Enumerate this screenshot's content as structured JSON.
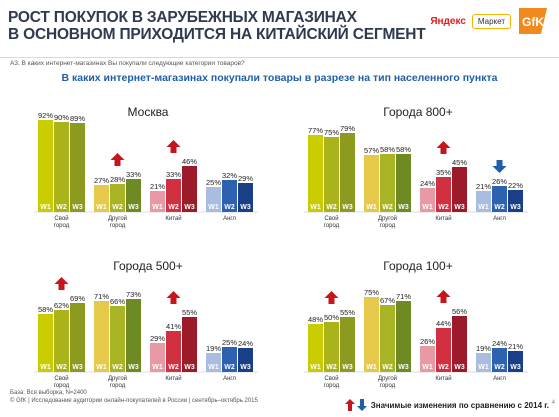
{
  "header": {
    "title_line1": "РОСТ ПОКУПОК В ЗАРУБЕЖНЫХ МАГАЗИНАХ",
    "title_line2": "В ОСНОВНОМ ПРИХОДИТСЯ НА КИТАЙСКИЙ СЕГМЕНТ",
    "question": "А3. В каких интернет-магазинах Вы покупали следующие категории товаров?",
    "subtitle": "В каких интернет-магазинах покупали товары в разрезе на тип населенного пункта",
    "logo_yandex": "Яндекс",
    "logo_market": "Маркет",
    "logo_gfk": "GfK"
  },
  "footer": {
    "base": "База: Вся выборка, N=2400",
    "source": "© GfK | Исследование аудитории онлайн-покупателей в России | сентябрь–октябрь 2015",
    "legend_text": "Значимые изменения по сравнению с 2014 г.",
    "page": "4"
  },
  "colors": {
    "svoy": [
      "#c9cc00",
      "#aab41a",
      "#8c9a1f"
    ],
    "drugoy": [
      "#e6c84a",
      "#a8b423",
      "#6e8a22"
    ],
    "kitay": [
      "#e79aa3",
      "#d0303f",
      "#9b1b2a"
    ],
    "angl": [
      "#a9bde0",
      "#2c62b0",
      "#1a3f86"
    ],
    "arrow_up": "#c4161c",
    "arrow_down": "#1f5fa8"
  },
  "chart_data": [
    {
      "type": "bar",
      "title": "Москва",
      "categories": [
        "Свой город",
        "Другой город",
        "Китай",
        "Англ"
      ],
      "series_labels": [
        "W1",
        "W2",
        "W3"
      ],
      "values": [
        [
          92,
          90,
          89
        ],
        [
          27,
          28,
          33
        ],
        [
          21,
          33,
          46
        ],
        [
          25,
          32,
          29
        ]
      ],
      "arrows": [
        "",
        "up",
        "up",
        ""
      ]
    },
    {
      "type": "bar",
      "title": "Города 800+",
      "categories": [
        "Свой город",
        "Другой город",
        "Китай",
        "Англ"
      ],
      "series_labels": [
        "W1",
        "W2",
        "W3"
      ],
      "values": [
        [
          77,
          75,
          79
        ],
        [
          57,
          58,
          58
        ],
        [
          24,
          35,
          45
        ],
        [
          21,
          26,
          22
        ]
      ],
      "arrows": [
        "",
        "",
        "up",
        "down"
      ]
    },
    {
      "type": "bar",
      "title": "Города 500+",
      "categories": [
        "Свой город",
        "Другой город",
        "Китай",
        "Англ"
      ],
      "series_labels": [
        "W1",
        "W2",
        "W3"
      ],
      "values": [
        [
          58,
          62,
          69
        ],
        [
          71,
          66,
          73
        ],
        [
          29,
          41,
          55
        ],
        [
          19,
          25,
          24
        ]
      ],
      "arrows": [
        "up",
        "",
        "up",
        ""
      ]
    },
    {
      "type": "bar",
      "title": "Города 100+",
      "categories": [
        "Свой город",
        "Другой город",
        "Китай",
        "Англ"
      ],
      "series_labels": [
        "W1",
        "W2",
        "W3"
      ],
      "values": [
        [
          48,
          50,
          55
        ],
        [
          75,
          67,
          71
        ],
        [
          26,
          44,
          56
        ],
        [
          19,
          24,
          21
        ]
      ],
      "arrows": [
        "up",
        "",
        "up",
        ""
      ]
    }
  ]
}
